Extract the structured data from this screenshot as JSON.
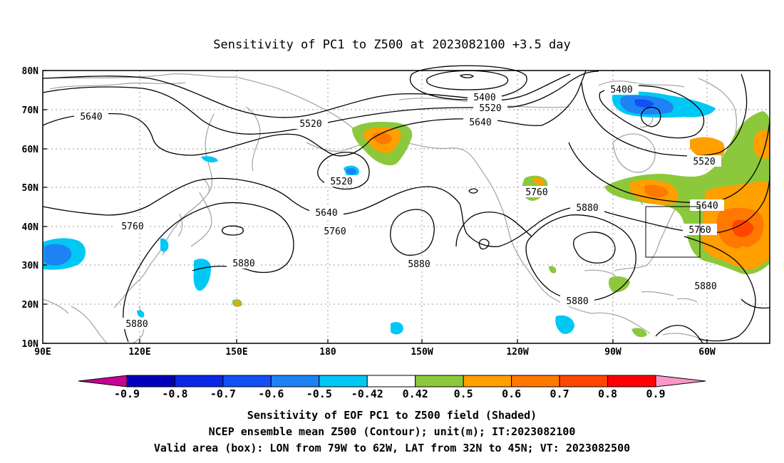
{
  "title": "Sensitivity of PC1 to Z500 at 2023082100 +3.5 day",
  "lat_ticks": [
    "80N",
    "70N",
    "60N",
    "50N",
    "40N",
    "30N",
    "20N",
    "10N"
  ],
  "lon_ticks": [
    "90E",
    "120E",
    "150E",
    "180",
    "150W",
    "120W",
    "90W",
    "60W"
  ],
  "contour_labels": [
    "5400",
    "5520",
    "5640",
    "5400",
    "5520",
    "5640",
    "5520",
    "5640",
    "5760",
    "5760",
    "5880",
    "5880",
    "5880",
    "5880",
    "5880",
    "5760",
    "5640",
    "5520",
    "5760",
    "5880"
  ],
  "colorbar": {
    "labels": [
      "-0.9",
      "-0.8",
      "-0.7",
      "-0.6",
      "-0.5",
      "-0.42",
      "0.42",
      "0.5",
      "0.6",
      "0.7",
      "0.8",
      "0.9"
    ],
    "colors": [
      "#0000bb",
      "#0a28e6",
      "#1050f5",
      "#1e82f5",
      "#00c8f5",
      "#ffffff",
      "#8cc83c",
      "#ff9f00",
      "#ff7800",
      "#ff4600",
      "#ff0000"
    ],
    "low_end_color": "#c80096",
    "high_end_color": "#ff96c8"
  },
  "captions": [
    "Sensitivity of EOF PC1 to Z500 field (Shaded)",
    "NCEP ensemble mean Z500 (Contour); unit(m); IT:2023082100",
    "Valid area (box): LON from 79W to 62W, LAT from 32N to 45N; VT: 2023082500"
  ]
}
